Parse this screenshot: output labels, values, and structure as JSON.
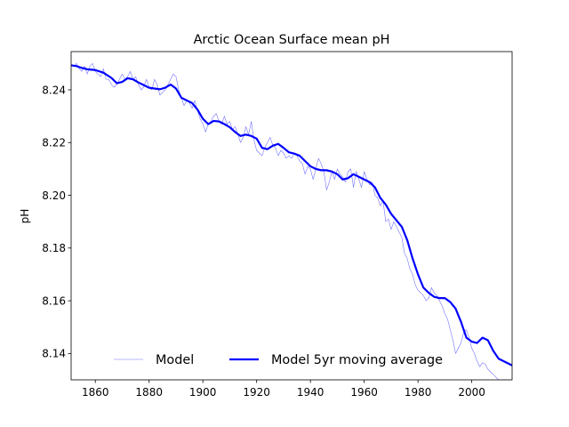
{
  "chart_data": {
    "type": "line",
    "title": "Arctic Ocean Surface mean pH",
    "xlabel": "",
    "ylabel": "pH",
    "xlim": [
      1851,
      2015
    ],
    "ylim": [
      8.13,
      8.2545
    ],
    "xticks": [
      1860,
      1880,
      1900,
      1920,
      1940,
      1960,
      1980,
      2000
    ],
    "xtick_labels": [
      "1860",
      "1880",
      "1900",
      "1920",
      "1940",
      "1960",
      "1980",
      "2000"
    ],
    "yticks": [
      8.14,
      8.16,
      8.18,
      8.2,
      8.22,
      8.24
    ],
    "ytick_labels": [
      "8.14",
      "8.16",
      "8.18",
      "8.20",
      "8.22",
      "8.24"
    ],
    "grid": false,
    "legend": {
      "position": "lower-center",
      "frameon": false,
      "ncol": 2
    },
    "series": [
      {
        "name": "Model",
        "color": "#0000ff",
        "style": "thin",
        "x": [
          1851,
          1852,
          1853,
          1854,
          1855,
          1856,
          1857,
          1858,
          1859,
          1860,
          1861,
          1862,
          1863,
          1864,
          1865,
          1866,
          1867,
          1868,
          1869,
          1870,
          1871,
          1872,
          1873,
          1874,
          1875,
          1876,
          1877,
          1878,
          1879,
          1880,
          1881,
          1882,
          1883,
          1884,
          1885,
          1886,
          1887,
          1888,
          1889,
          1890,
          1891,
          1892,
          1893,
          1894,
          1895,
          1896,
          1897,
          1898,
          1899,
          1900,
          1901,
          1902,
          1903,
          1904,
          1905,
          1906,
          1907,
          1908,
          1909,
          1910,
          1911,
          1912,
          1913,
          1914,
          1915,
          1916,
          1917,
          1918,
          1919,
          1920,
          1921,
          1922,
          1923,
          1924,
          1925,
          1926,
          1927,
          1928,
          1929,
          1930,
          1931,
          1932,
          1933,
          1934,
          1935,
          1936,
          1937,
          1938,
          1939,
          1940,
          1941,
          1942,
          1943,
          1944,
          1945,
          1946,
          1947,
          1948,
          1949,
          1950,
          1951,
          1952,
          1953,
          1954,
          1955,
          1956,
          1957,
          1958,
          1959,
          1960,
          1961,
          1962,
          1963,
          1964,
          1965,
          1966,
          1967,
          1968,
          1969,
          1970,
          1971,
          1972,
          1973,
          1974,
          1975,
          1976,
          1977,
          1978,
          1979,
          1980,
          1981,
          1982,
          1983,
          1984,
          1985,
          1986,
          1987,
          1988,
          1989,
          1990,
          1991,
          1992,
          1993,
          1994,
          1995,
          1996,
          1997,
          1998,
          1999,
          2000,
          2001,
          2002,
          2003,
          2004,
          2005,
          2006,
          2007,
          2008,
          2009,
          2010,
          2011,
          2012,
          2013,
          2014,
          2015
        ],
        "y": [
          8.2495,
          8.249,
          8.25,
          8.248,
          8.247,
          8.249,
          8.246,
          8.249,
          8.25,
          8.247,
          8.246,
          8.245,
          8.248,
          8.244,
          8.244,
          8.242,
          8.241,
          8.242,
          8.244,
          8.246,
          8.244,
          8.245,
          8.247,
          8.244,
          8.245,
          8.242,
          8.24,
          8.241,
          8.244,
          8.241,
          8.24,
          8.244,
          8.242,
          8.238,
          8.239,
          8.24,
          8.242,
          8.244,
          8.246,
          8.245,
          8.24,
          8.237,
          8.234,
          8.236,
          8.235,
          8.233,
          8.236,
          8.232,
          8.229,
          8.227,
          8.224,
          8.227,
          8.228,
          8.23,
          8.231,
          8.228,
          8.227,
          8.23,
          8.227,
          8.228,
          8.225,
          8.226,
          8.223,
          8.22,
          8.222,
          8.226,
          8.223,
          8.228,
          8.221,
          8.217,
          8.216,
          8.215,
          8.218,
          8.22,
          8.222,
          8.219,
          8.218,
          8.215,
          8.217,
          8.216,
          8.214,
          8.215,
          8.214,
          8.216,
          8.215,
          8.213,
          8.212,
          8.208,
          8.211,
          8.21,
          8.206,
          8.21,
          8.214,
          8.212,
          8.209,
          8.202,
          8.205,
          8.209,
          8.206,
          8.21,
          8.208,
          8.207,
          8.205,
          8.209,
          8.21,
          8.203,
          8.209,
          8.206,
          8.203,
          8.209,
          8.206,
          8.204,
          8.205,
          8.2,
          8.199,
          8.196,
          8.198,
          8.19,
          8.191,
          8.187,
          8.19,
          8.188,
          8.186,
          8.184,
          8.178,
          8.176,
          8.172,
          8.17,
          8.166,
          8.164,
          8.163,
          8.162,
          8.16,
          8.161,
          8.165,
          8.163,
          8.162,
          8.16,
          8.158,
          8.155,
          8.153,
          8.149,
          8.145,
          8.14,
          8.142,
          8.144,
          8.148,
          8.149,
          8.146,
          8.142,
          8.14,
          8.137,
          8.135,
          8.1365,
          8.136,
          8.134,
          8.133,
          8.132,
          8.131,
          8.13,
          8.13,
          8.13,
          8.13,
          8.13,
          8.13
        ]
      },
      {
        "name": "Model 5yr moving average",
        "color": "#0000ff",
        "style": "thick",
        "x": [
          1851,
          1853,
          1855,
          1857,
          1860,
          1863,
          1866,
          1868,
          1870,
          1872,
          1874,
          1876,
          1878,
          1880,
          1882,
          1884,
          1886,
          1888,
          1890,
          1892,
          1894,
          1896,
          1898,
          1900,
          1902,
          1904,
          1906,
          1908,
          1910,
          1912,
          1914,
          1916,
          1918,
          1920,
          1922,
          1924,
          1926,
          1928,
          1930,
          1932,
          1934,
          1936,
          1938,
          1940,
          1942,
          1944,
          1946,
          1948,
          1950,
          1952,
          1954,
          1956,
          1958,
          1960,
          1962,
          1964,
          1966,
          1968,
          1970,
          1972,
          1974,
          1976,
          1978,
          1980,
          1982,
          1984,
          1986,
          1988,
          1990,
          1992,
          1994,
          1996,
          1998,
          2000,
          2002,
          2004,
          2006,
          2008,
          2010,
          2012,
          2013,
          2014,
          2015
        ],
        "y": [
          8.2493,
          8.249,
          8.2483,
          8.2478,
          8.2475,
          8.2465,
          8.2445,
          8.2425,
          8.243,
          8.2444,
          8.244,
          8.2428,
          8.2418,
          8.2408,
          8.2405,
          8.2402,
          8.2408,
          8.242,
          8.2405,
          8.237,
          8.236,
          8.235,
          8.2325,
          8.229,
          8.227,
          8.2282,
          8.228,
          8.227,
          8.2258,
          8.224,
          8.2225,
          8.223,
          8.2225,
          8.2215,
          8.218,
          8.2175,
          8.2188,
          8.2195,
          8.218,
          8.2163,
          8.2158,
          8.215,
          8.213,
          8.211,
          8.21,
          8.2095,
          8.2095,
          8.209,
          8.208,
          8.206,
          8.2065,
          8.208,
          8.207,
          8.206,
          8.205,
          8.203,
          8.199,
          8.1965,
          8.193,
          8.1905,
          8.188,
          8.183,
          8.176,
          8.17,
          8.165,
          8.163,
          8.1615,
          8.161,
          8.161,
          8.1595,
          8.157,
          8.152,
          8.146,
          8.1445,
          8.144,
          8.146,
          8.145,
          8.141,
          8.138,
          8.137,
          8.1365,
          8.136,
          8.1355
        ]
      }
    ]
  }
}
